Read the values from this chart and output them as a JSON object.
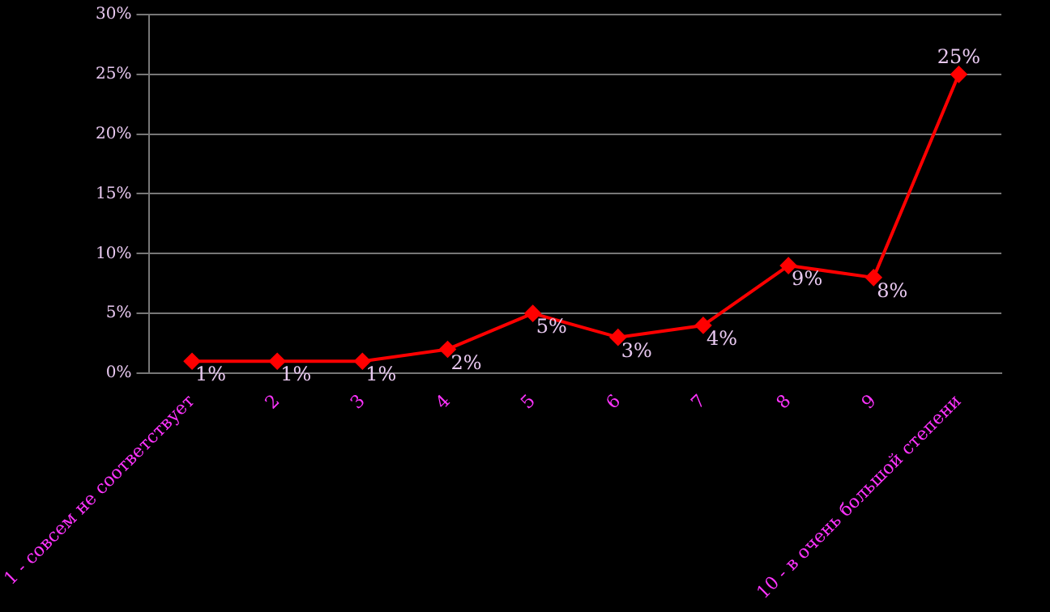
{
  "chart_data": {
    "type": "line",
    "categories": [
      "1 - совсем не соответствует",
      "2",
      "3",
      "4",
      "5",
      "6",
      "7",
      "8",
      "9",
      "10 - в очень большой степени"
    ],
    "series": [
      {
        "color": "#ff0000",
        "values": [
          1,
          1,
          1,
          2,
          5,
          3,
          4,
          9,
          8,
          25
        ],
        "value_labels": [
          "1%",
          "1%",
          "1%",
          "2%",
          "5%",
          "3%",
          "4%",
          "9%",
          "8%",
          "25%"
        ]
      }
    ],
    "ylim": [
      0,
      30
    ],
    "yticks": [
      {
        "value": 0,
        "label": "0%"
      },
      {
        "value": 5,
        "label": "5%"
      },
      {
        "value": 10,
        "label": "10%"
      },
      {
        "value": 15,
        "label": "15%"
      },
      {
        "value": 20,
        "label": "20%"
      },
      {
        "value": 25,
        "label": "25%"
      },
      {
        "value": 30,
        "label": "30%"
      }
    ],
    "grid": "y",
    "marker": "diamond",
    "line_style": "solid",
    "legend": false
  }
}
